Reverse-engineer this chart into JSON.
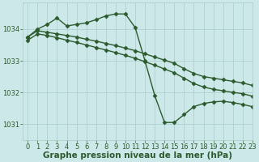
{
  "background_color": "#cce8e8",
  "grid_color": "#aacccc",
  "line_color": "#2d5a2d",
  "marker_color": "#2d5a2d",
  "xlabel": "Graphe pression niveau de la mer (hPa)",
  "ylim": [
    1030.5,
    1034.85
  ],
  "xlim": [
    -0.5,
    23
  ],
  "yticks": [
    1031,
    1032,
    1033,
    1034
  ],
  "xticks": [
    0,
    1,
    2,
    3,
    4,
    5,
    6,
    7,
    8,
    9,
    10,
    11,
    12,
    13,
    14,
    15,
    16,
    17,
    18,
    19,
    20,
    21,
    22,
    23
  ],
  "series": [
    {
      "x": [
        0,
        1,
        2,
        3,
        4,
        5,
        6,
        7,
        8,
        9,
        10,
        11,
        12,
        13,
        14,
        15,
        16,
        17,
        18,
        19,
        20,
        21,
        22,
        23
      ],
      "y": [
        1033.75,
        1034.0,
        1034.15,
        1034.35,
        1034.1,
        1034.15,
        1034.2,
        1034.3,
        1034.42,
        1034.48,
        1034.48,
        1034.05,
        1033.0,
        1031.9,
        1031.05,
        1031.05,
        1031.3,
        1031.55,
        1031.65,
        1031.7,
        1031.72,
        1031.68,
        1031.62,
        1031.55
      ],
      "marker": "D",
      "markersize": 2.5,
      "linewidth": 1.0
    },
    {
      "x": [
        0,
        1,
        2,
        3,
        4,
        5,
        6,
        7,
        8,
        9,
        10,
        11,
        12,
        13,
        14,
        15,
        16,
        17,
        18,
        19,
        20,
        21,
        22,
        23
      ],
      "y": [
        1033.75,
        1033.95,
        1033.9,
        1033.85,
        1033.8,
        1033.75,
        1033.68,
        1033.62,
        1033.55,
        1033.48,
        1033.4,
        1033.32,
        1033.22,
        1033.12,
        1033.02,
        1032.92,
        1032.75,
        1032.6,
        1032.5,
        1032.45,
        1032.4,
        1032.35,
        1032.3,
        1032.22
      ],
      "marker": "D",
      "markersize": 2.5,
      "linewidth": 1.0
    },
    {
      "x": [
        0,
        1,
        2,
        3,
        4,
        5,
        6,
        7,
        8,
        9,
        10,
        11,
        12,
        13,
        14,
        15,
        16,
        17,
        18,
        19,
        20,
        21,
        22,
        23
      ],
      "y": [
        1033.65,
        1033.85,
        1033.8,
        1033.73,
        1033.65,
        1033.58,
        1033.5,
        1033.42,
        1033.34,
        1033.26,
        1033.17,
        1033.08,
        1032.97,
        1032.86,
        1032.74,
        1032.62,
        1032.45,
        1032.28,
        1032.17,
        1032.1,
        1032.05,
        1032.0,
        1031.96,
        1031.88
      ],
      "marker": "D",
      "markersize": 2.5,
      "linewidth": 1.0
    }
  ],
  "xlabel_fontsize": 7.5,
  "tick_fontsize": 6.0,
  "tick_color": "#2d5a2d",
  "label_color": "#2d5a2d"
}
